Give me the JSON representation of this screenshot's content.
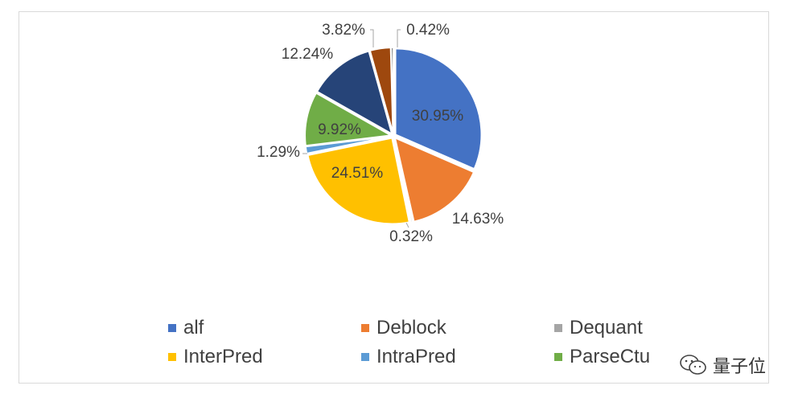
{
  "chart_data": {
    "type": "pie",
    "title": "",
    "slices": [
      {
        "name": "alf",
        "value": 30.95,
        "label": "30.95%",
        "color": "#4472C4"
      },
      {
        "name": "Deblock",
        "value": 14.63,
        "label": "14.63%",
        "color": "#ED7D31"
      },
      {
        "name": "Dequant",
        "value": 0.32,
        "label": "0.32%",
        "color": "#A5A5A5"
      },
      {
        "name": "InterPred",
        "value": 24.51,
        "label": "24.51%",
        "color": "#FFC000"
      },
      {
        "name": "IntraPred",
        "value": 1.29,
        "label": "1.29%",
        "color": "#5B9BD5"
      },
      {
        "name": "ParseCtu",
        "value": 9.92,
        "label": "9.92%",
        "color": "#70AD47"
      },
      {
        "name": "",
        "value": 12.24,
        "label": "12.24%",
        "color": "#264478"
      },
      {
        "name": "",
        "value": 3.82,
        "label": "3.82%",
        "color": "#9E480E"
      },
      {
        "name": "",
        "value": 0.42,
        "label": "0.42%",
        "color": "#636363"
      }
    ],
    "legend": {
      "position": "bottom",
      "entries": [
        "alf",
        "Deblock",
        "Dequant",
        "InterPred",
        "IntraPred",
        "ParseCtu"
      ]
    }
  },
  "watermark": {
    "text": "量子位",
    "icon": "wechat-icon"
  }
}
